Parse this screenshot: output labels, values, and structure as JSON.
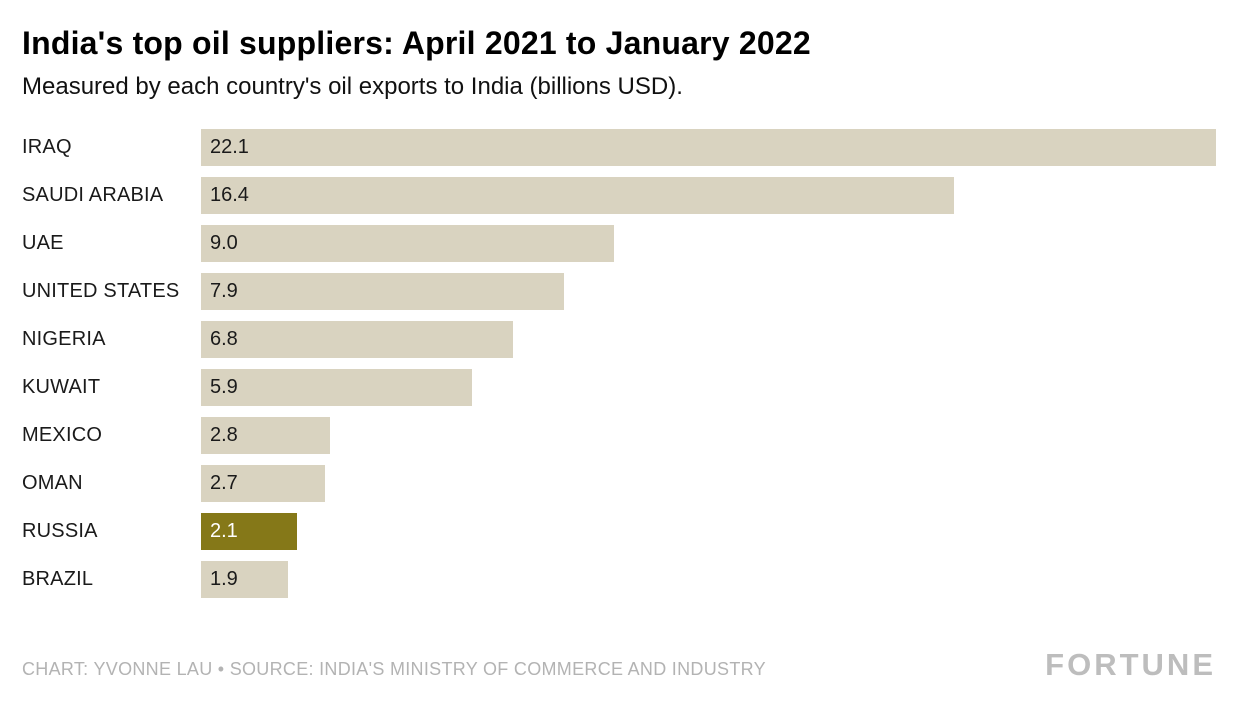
{
  "header": {
    "title": "India's top oil suppliers: April 2021 to January 2022",
    "subtitle": "Measured by each country's oil exports to India (billions USD)."
  },
  "footer": {
    "credit": "CHART: YVONNE LAU • SOURCE: INDIA'S MINISTRY OF COMMERCE AND INDUSTRY",
    "brand": "FORTUNE"
  },
  "chart_data": {
    "type": "bar",
    "orientation": "horizontal",
    "title": "India's top oil suppliers: April 2021 to January 2022",
    "subtitle": "Measured by each country's oil exports to India (billions USD).",
    "xlabel": "",
    "ylabel": "",
    "xlim": [
      0,
      22.1
    ],
    "grid": false,
    "legend": "none",
    "categories": [
      "IRAQ",
      "SAUDI ARABIA",
      "UAE",
      "UNITED STATES",
      "NIGERIA",
      "KUWAIT",
      "MEXICO",
      "OMAN",
      "RUSSIA",
      "BRAZIL"
    ],
    "values": [
      22.1,
      16.4,
      9.0,
      7.9,
      6.8,
      5.9,
      2.8,
      2.7,
      2.1,
      1.9
    ],
    "value_labels": [
      "22.1",
      "16.4",
      "9.0",
      "7.9",
      "6.8",
      "5.9",
      "2.8",
      "2.7",
      "2.1",
      "1.9"
    ],
    "highlight_category": "RUSSIA",
    "colors": {
      "bar": "#d9d3c0",
      "highlight_bar": "#857818",
      "value_text": "#1a1a1a",
      "highlight_value_text": "#ffffff"
    }
  }
}
